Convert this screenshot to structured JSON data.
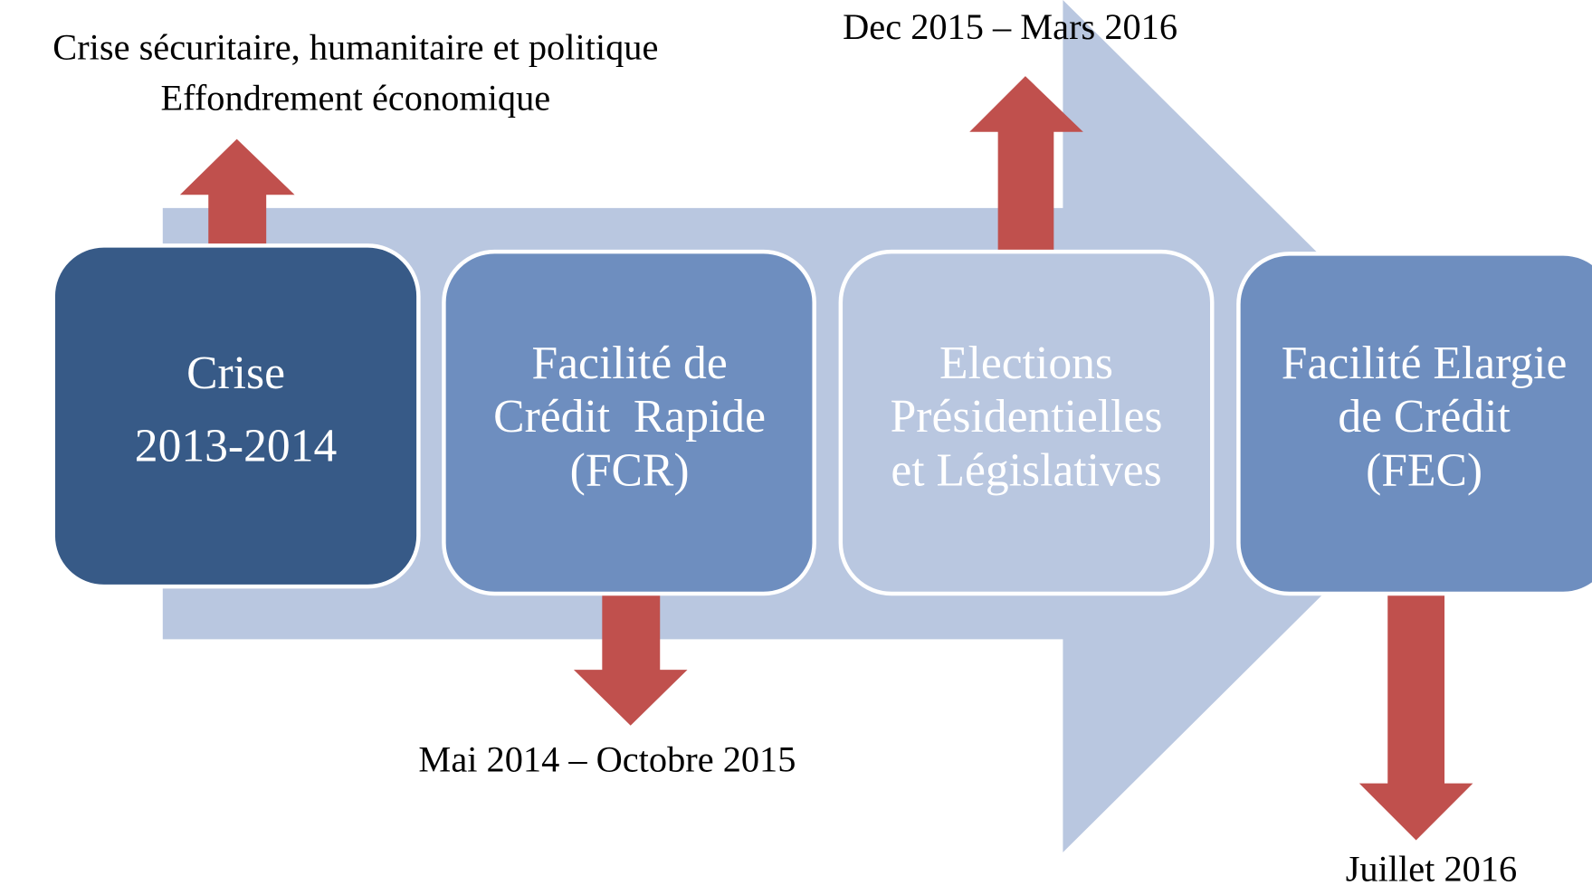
{
  "nodes": [
    {
      "lines": [
        "Crise",
        "2013-2014"
      ],
      "annotation": [
        "Crise sécuritaire, humanitaire et politique",
        "Effondrement économique"
      ]
    },
    {
      "lines": [
        "Facilité de",
        "Crédit  Rapide",
        "(FCR)"
      ],
      "annotation": [
        "Mai 2014 – Octobre 2015"
      ]
    },
    {
      "lines": [
        "Elections",
        "Présidentielles",
        "et Législatives"
      ],
      "annotation": [
        "Dec 2015 – Mars 2016"
      ]
    },
    {
      "lines": [
        "Facilité Elargie",
        "de Crédit",
        "(FEC)"
      ],
      "annotation": [
        "Juillet 2016"
      ]
    }
  ]
}
